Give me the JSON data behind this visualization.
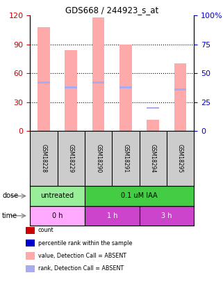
{
  "title": "GDS668 / 244923_s_at",
  "samples": [
    "GSM18228",
    "GSM18229",
    "GSM18290",
    "GSM18291",
    "GSM18294",
    "GSM18295"
  ],
  "bar_values_pink": [
    108,
    84,
    118,
    90,
    12,
    70
  ],
  "bar_ranks_blue": [
    42,
    38,
    42,
    38,
    20,
    36
  ],
  "rank_bar_color": "#aaaaee",
  "value_bar_color": "#ffaaaa",
  "ylim_left": [
    0,
    120
  ],
  "ylim_right": [
    0,
    100
  ],
  "yticks_left": [
    0,
    30,
    60,
    90,
    120
  ],
  "yticks_right": [
    0,
    25,
    50,
    75,
    100
  ],
  "yticklabels_left": [
    "0",
    "30",
    "60",
    "90",
    "120"
  ],
  "yticklabels_right": [
    "0",
    "25",
    "50",
    "75",
    "100%"
  ],
  "left_axis_color": "#cc0000",
  "right_axis_color": "#0000cc",
  "sample_box_color": "#cccccc",
  "dose_color_untreated": "#99ee99",
  "dose_color_treated": "#44cc44",
  "time_color_0h": "#ffaaff",
  "time_color_1h": "#cc44cc",
  "time_color_3h": "#cc44cc",
  "legend_items": [
    {
      "color": "#cc0000",
      "label": "count"
    },
    {
      "color": "#0000cc",
      "label": "percentile rank within the sample"
    },
    {
      "color": "#ffaaaa",
      "label": "value, Detection Call = ABSENT"
    },
    {
      "color": "#aaaaee",
      "label": "rank, Detection Call = ABSENT"
    }
  ],
  "bar_width": 0.45
}
